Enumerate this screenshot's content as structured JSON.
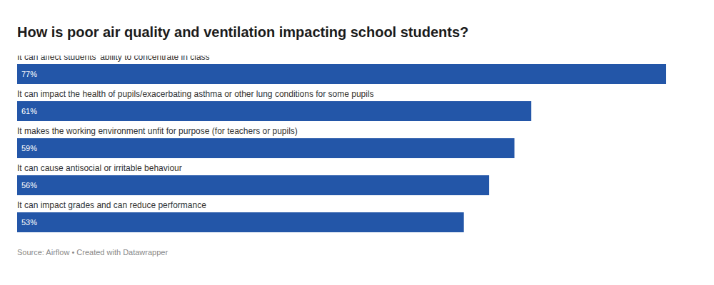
{
  "chart_data": {
    "type": "bar",
    "title": "How is poor air quality and ventilation impacting school students?",
    "source": "Source: Airflow • Created with Datawrapper",
    "categories": [
      "It can affect students' ability to concentrate in class",
      "It can impact the health of pupils/exacerbating asthma or other lung conditions for some pupils",
      "It makes the working environment unfit for purpose (for teachers or pupils)",
      "It can cause antisocial or irritable behaviour",
      "It can impact grades and can reduce performance"
    ],
    "values": [
      77,
      61,
      59,
      56,
      53
    ],
    "value_labels": [
      "77%",
      "61%",
      "59%",
      "56%",
      "53%"
    ],
    "color": "#2356a8",
    "orientation": "horizontal",
    "xlim": [
      0,
      77
    ],
    "data_labels": true,
    "tick_labels": false,
    "grid": false
  }
}
